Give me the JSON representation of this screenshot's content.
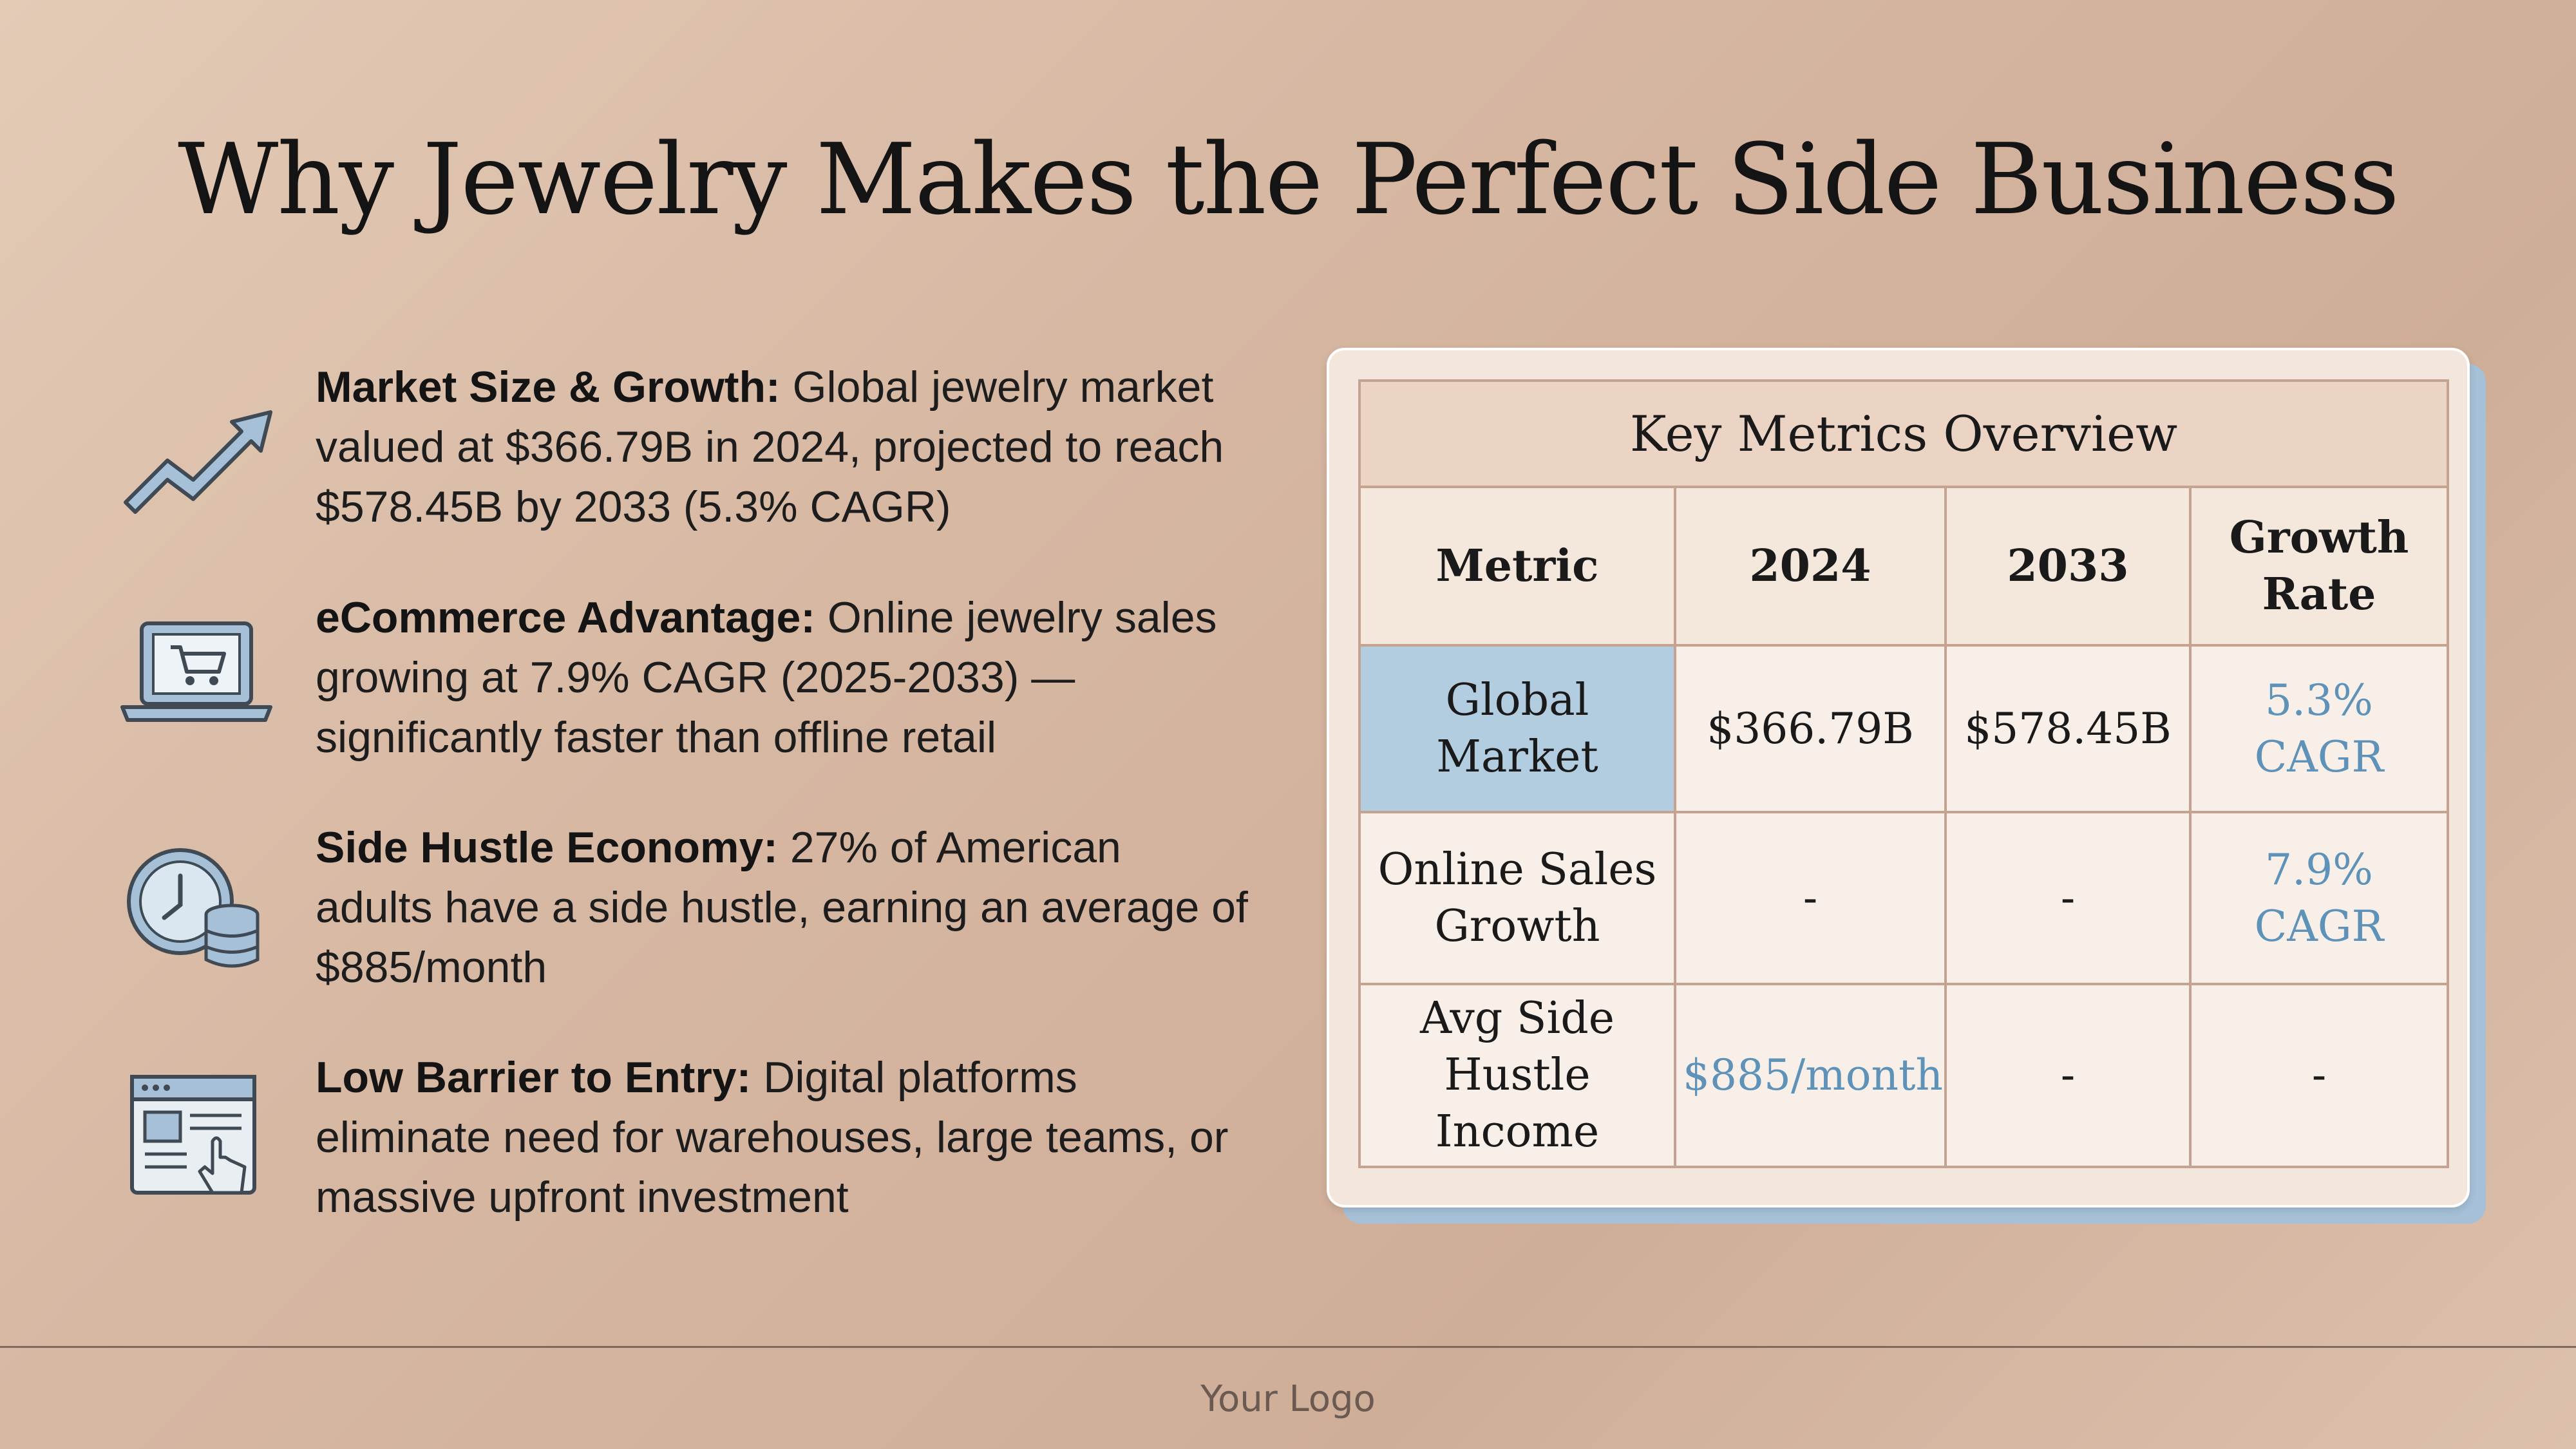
{
  "title": "Why Jewelry Makes the Perfect Side Business",
  "features": [
    {
      "icon": "trend-up-arrow-icon",
      "heading": "Market Size & Growth:",
      "body": " Global jewelry market valued at $366.79B in 2024, projected to reach $578.45B by 2033 (5.3% CAGR)"
    },
    {
      "icon": "laptop-cart-icon",
      "heading": "eCommerce Advantage:",
      "body": " Online jewelry sales growing at 7.9% CAGR (2025-2033) — significantly faster than offline retail"
    },
    {
      "icon": "clock-coins-icon",
      "heading": "Side Hustle Economy:",
      "body": " 27% of American adults have a side hustle, earning an average of $885/month"
    },
    {
      "icon": "browser-click-icon",
      "heading": "Low Barrier to Entry:",
      "body": " Digital platforms eliminate need for warehouses, large teams, or massive upfront investment"
    }
  ],
  "table": {
    "caption": "Key Metrics Overview",
    "headers": [
      "Metric",
      "2024",
      "2033",
      "Growth Rate"
    ],
    "rows": [
      {
        "label": "Global Market",
        "c2024": "$366.79B",
        "c2033": "$578.45B",
        "growth": "5.3% CAGR"
      },
      {
        "label": "Online Sales Growth",
        "c2024": "-",
        "c2033": "-",
        "growth": "7.9% CAGR"
      },
      {
        "label": "Avg Side Hustle Income",
        "c2024": "$885/month",
        "c2033": "-",
        "growth": "-"
      }
    ]
  },
  "footer": {
    "logo": "Your Logo"
  },
  "colors": {
    "accent": "#5f92b8",
    "highlight": "#b2cde0",
    "icon_fill": "#a6c0d8",
    "icon_stroke": "#3f4a55"
  }
}
